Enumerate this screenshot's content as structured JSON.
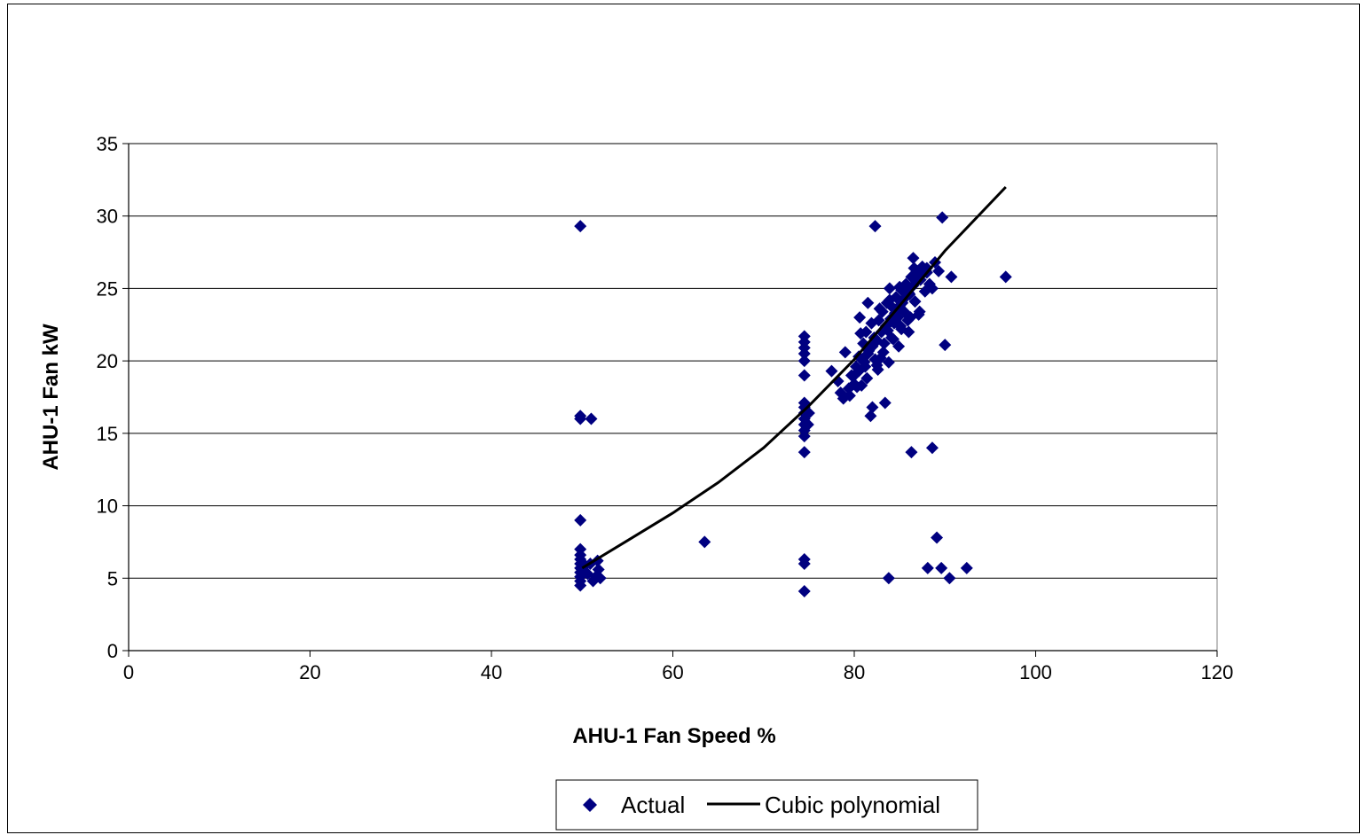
{
  "chart_data": {
    "type": "scatter",
    "xlabel": "AHU-1 Fan Speed %",
    "ylabel": "AHU-1 Fan kW",
    "xlim": [
      0,
      120
    ],
    "ylim": [
      0,
      35
    ],
    "x_ticks": [
      0,
      20,
      40,
      60,
      80,
      100,
      120
    ],
    "y_ticks": [
      0,
      5,
      10,
      15,
      20,
      25,
      30,
      35
    ],
    "grid": "horizontal",
    "legend_position": "bottom",
    "series": [
      {
        "name": "Actual",
        "kind": "scatter",
        "marker": "diamond",
        "color": "#000080",
        "points": [
          [
            49.8,
            29.3
          ],
          [
            49.8,
            16.2
          ],
          [
            49.8,
            16.0
          ],
          [
            51.0,
            16.0
          ],
          [
            49.8,
            9.0
          ],
          [
            49.8,
            7.0
          ],
          [
            49.8,
            6.6
          ],
          [
            49.8,
            6.3
          ],
          [
            49.8,
            6.0
          ],
          [
            49.8,
            5.7
          ],
          [
            49.8,
            5.4
          ],
          [
            49.8,
            5.1
          ],
          [
            49.8,
            4.8
          ],
          [
            49.8,
            4.5
          ],
          [
            50.3,
            5.9
          ],
          [
            50.6,
            5.3
          ],
          [
            51.2,
            4.8
          ],
          [
            51.5,
            5.1
          ],
          [
            51.8,
            5.6
          ],
          [
            52.0,
            5.0
          ],
          [
            51.7,
            6.2
          ],
          [
            50.9,
            6.0
          ],
          [
            63.5,
            7.5
          ],
          [
            74.5,
            21.7
          ],
          [
            74.5,
            21.3
          ],
          [
            74.5,
            20.9
          ],
          [
            74.5,
            20.5
          ],
          [
            74.5,
            20.0
          ],
          [
            74.5,
            19.0
          ],
          [
            74.5,
            17.1
          ],
          [
            74.5,
            16.8
          ],
          [
            74.5,
            16.4
          ],
          [
            74.5,
            16.0
          ],
          [
            74.5,
            15.6
          ],
          [
            74.5,
            15.2
          ],
          [
            74.5,
            14.8
          ],
          [
            74.5,
            13.7
          ],
          [
            74.9,
            15.6
          ],
          [
            75.0,
            16.4
          ],
          [
            74.5,
            6.3
          ],
          [
            74.5,
            6.0
          ],
          [
            74.5,
            4.1
          ],
          [
            77.5,
            19.3
          ],
          [
            78.2,
            18.6
          ],
          [
            78.5,
            17.8
          ],
          [
            78.8,
            17.4
          ],
          [
            79.0,
            20.6
          ],
          [
            79.4,
            18.1
          ],
          [
            79.7,
            19.0
          ],
          [
            80.0,
            18.4
          ],
          [
            80.2,
            19.6
          ],
          [
            80.5,
            20.3
          ],
          [
            80.6,
            23.0
          ],
          [
            80.8,
            18.3
          ],
          [
            81.0,
            21.2
          ],
          [
            81.1,
            19.9
          ],
          [
            81.3,
            22.0
          ],
          [
            81.5,
            24.0
          ],
          [
            81.6,
            20.7
          ],
          [
            81.8,
            16.2
          ],
          [
            82.0,
            16.8
          ],
          [
            82.2,
            21.6
          ],
          [
            82.3,
            29.3
          ],
          [
            82.5,
            19.7
          ],
          [
            82.7,
            22.8
          ],
          [
            82.9,
            20.2
          ],
          [
            83.1,
            23.4
          ],
          [
            83.3,
            21.2
          ],
          [
            83.4,
            17.1
          ],
          [
            83.6,
            24.0
          ],
          [
            83.7,
            22.1
          ],
          [
            83.9,
            25.0
          ],
          [
            84.1,
            21.6
          ],
          [
            84.2,
            23.7
          ],
          [
            84.4,
            22.6
          ],
          [
            84.6,
            24.4
          ],
          [
            84.8,
            23.0
          ],
          [
            85.0,
            25.1
          ],
          [
            85.1,
            22.4
          ],
          [
            85.3,
            24.0
          ],
          [
            85.5,
            23.4
          ],
          [
            85.7,
            25.3
          ],
          [
            85.9,
            22.8
          ],
          [
            86.1,
            24.6
          ],
          [
            86.3,
            25.8
          ],
          [
            86.5,
            27.1
          ],
          [
            86.7,
            24.1
          ],
          [
            86.9,
            26.1
          ],
          [
            87.1,
            23.2
          ],
          [
            87.3,
            25.6
          ],
          [
            87.5,
            26.5
          ],
          [
            87.8,
            24.8
          ],
          [
            88.0,
            26.1
          ],
          [
            88.3,
            25.3
          ],
          [
            88.6,
            25.0
          ],
          [
            88.9,
            26.8
          ],
          [
            89.3,
            26.2
          ],
          [
            89.7,
            29.9
          ],
          [
            90.0,
            21.1
          ],
          [
            90.7,
            25.8
          ],
          [
            96.7,
            25.8
          ],
          [
            81.0,
            20.0
          ],
          [
            81.5,
            20.5
          ],
          [
            82.0,
            21.0
          ],
          [
            82.5,
            21.4
          ],
          [
            83.0,
            22.0
          ],
          [
            83.5,
            22.4
          ],
          [
            84.0,
            22.9
          ],
          [
            84.5,
            23.3
          ],
          [
            85.0,
            23.8
          ],
          [
            85.5,
            24.3
          ],
          [
            86.0,
            24.7
          ],
          [
            86.5,
            25.2
          ],
          [
            87.0,
            25.6
          ],
          [
            87.5,
            26.0
          ],
          [
            88.0,
            26.4
          ],
          [
            80.0,
            19.0
          ],
          [
            80.5,
            19.3
          ],
          [
            81.2,
            19.6
          ],
          [
            82.3,
            20.1
          ],
          [
            83.2,
            20.6
          ],
          [
            84.3,
            21.5
          ],
          [
            85.2,
            22.2
          ],
          [
            86.2,
            23.0
          ],
          [
            79.5,
            17.6
          ],
          [
            80.3,
            18.2
          ],
          [
            81.4,
            18.8
          ],
          [
            82.6,
            19.4
          ],
          [
            83.8,
            19.9
          ],
          [
            84.9,
            21.0
          ],
          [
            86.0,
            22.0
          ],
          [
            87.2,
            23.4
          ],
          [
            80.7,
            21.9
          ],
          [
            81.9,
            22.6
          ],
          [
            82.8,
            23.6
          ],
          [
            83.9,
            24.2
          ],
          [
            85.2,
            24.9
          ],
          [
            86.6,
            26.4
          ],
          [
            87.9,
            26.2
          ],
          [
            86.3,
            13.7
          ],
          [
            88.6,
            14.0
          ],
          [
            83.8,
            5.0
          ],
          [
            88.1,
            5.7
          ],
          [
            89.1,
            7.8
          ],
          [
            89.6,
            5.7
          ],
          [
            90.5,
            5.0
          ],
          [
            92.4,
            5.7
          ]
        ]
      },
      {
        "name": "Cubic polynomial",
        "kind": "line",
        "color": "#000000",
        "points": [
          [
            50,
            5.7
          ],
          [
            55,
            7.6
          ],
          [
            60,
            9.5
          ],
          [
            65,
            11.6
          ],
          [
            70,
            14.0
          ],
          [
            75,
            16.9
          ],
          [
            80,
            20.1
          ],
          [
            85,
            23.8
          ],
          [
            90,
            27.6
          ],
          [
            96.7,
            32.0
          ]
        ]
      }
    ]
  }
}
